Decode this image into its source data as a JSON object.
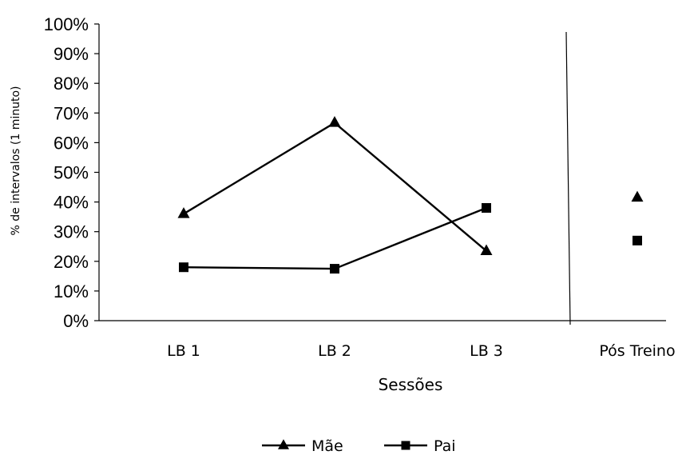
{
  "chart_data": {
    "type": "line",
    "title": "",
    "xlabel": "Sessões",
    "ylabel": "% de intervalos (1 minuto)",
    "categories": [
      "LB 1",
      "LB 2",
      "LB 3",
      "Pós Treino"
    ],
    "ylim": [
      0,
      100
    ],
    "ytick_labels": [
      "0%",
      "10%",
      "20%",
      "30%",
      "40%",
      "50%",
      "60%",
      "70%",
      "80%",
      "90%",
      "100%"
    ],
    "grid": false,
    "legend_position": "bottom",
    "phase_change_line": "between LB 3 and Pós Treino",
    "series": [
      {
        "name": "Mãe",
        "marker": "triangle",
        "color": "#000000",
        "values": [
          36,
          66.7,
          23.5,
          41.5
        ],
        "connected_points": 3
      },
      {
        "name": "Pai",
        "marker": "square",
        "color": "#000000",
        "values": [
          18,
          17.5,
          38,
          27
        ],
        "connected_points": 3
      }
    ]
  }
}
